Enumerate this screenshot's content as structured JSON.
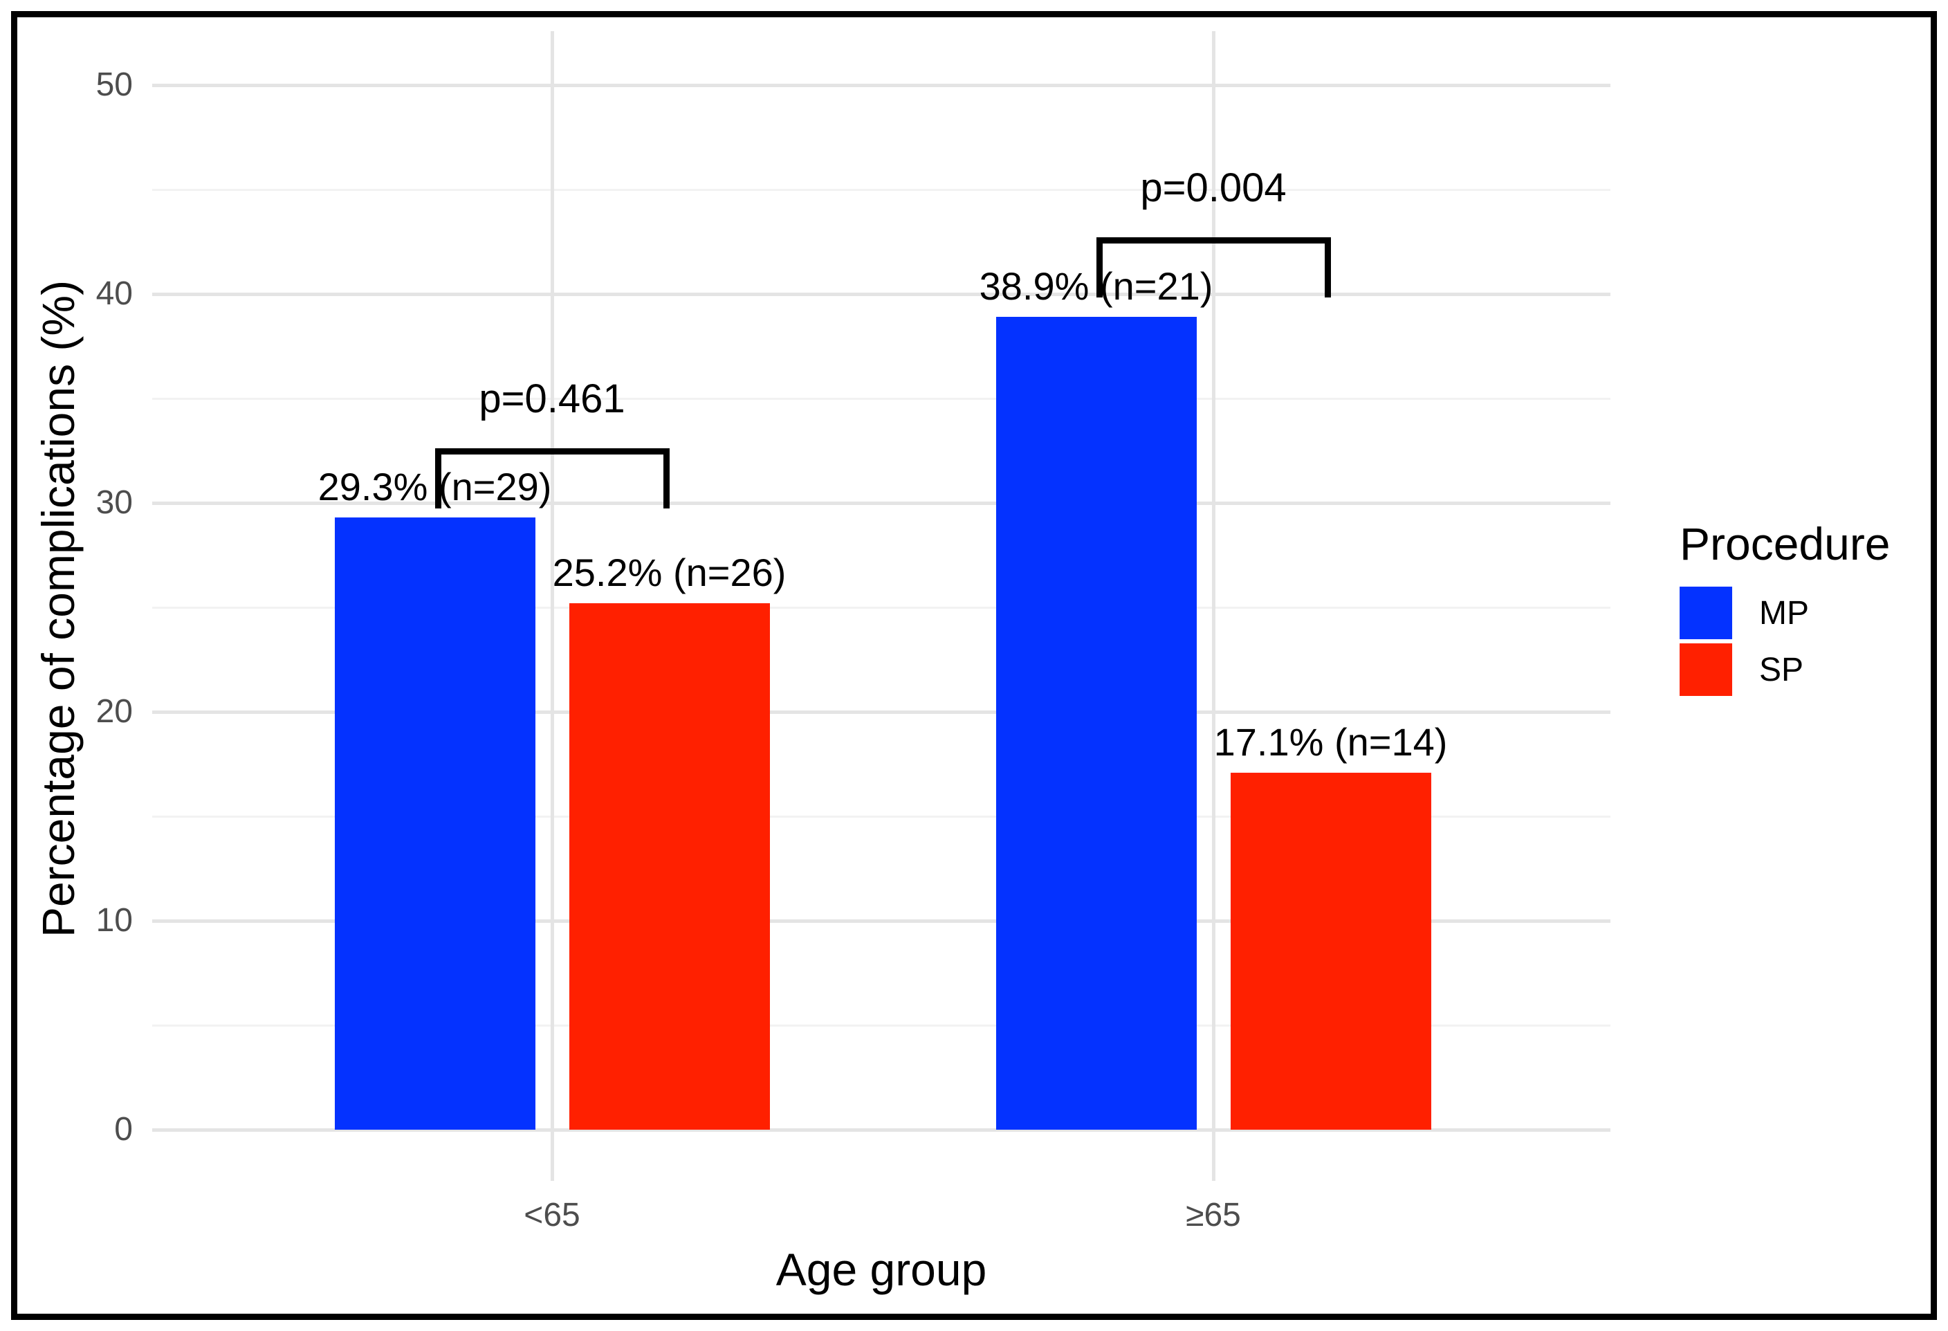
{
  "figure": {
    "background_color": "#FFFFFF",
    "border_color": "#000000"
  },
  "colors": {
    "mp_blue": "#0432FF",
    "sp_red": "#FF2000",
    "grid_major": "#E4E4E4",
    "grid_minor": "#F2F2F2",
    "axis_text": "#4D4D4D",
    "annotation_text": "#000000"
  },
  "chart_data": {
    "type": "bar",
    "title": "",
    "xlabel": "Age group",
    "ylabel": "Percentage of complications (%)",
    "categories": [
      "<65",
      "≥65"
    ],
    "series": [
      {
        "name": "MP",
        "color": "#0432FF",
        "values": [
          29.3,
          38.9
        ],
        "counts": [
          29,
          21
        ],
        "bar_labels": [
          "29.3% (n=29)",
          "38.9% (n=21)"
        ]
      },
      {
        "name": "SP",
        "color": "#FF2000",
        "values": [
          25.2,
          17.1
        ],
        "counts": [
          26,
          14
        ],
        "bar_labels": [
          "25.2% (n=26)",
          "17.1% (n=14)"
        ]
      }
    ],
    "ylim": [
      0,
      50
    ],
    "yticks": [
      0,
      10,
      20,
      30,
      40,
      50
    ],
    "yticks_minor": [
      5,
      15,
      25,
      35,
      45
    ],
    "grid": true,
    "legend": {
      "title": "Procedure",
      "position": "right",
      "items": [
        {
          "label": "MP",
          "color": "#0432FF"
        },
        {
          "label": "SP",
          "color": "#FF2000"
        }
      ]
    },
    "significance_brackets": [
      {
        "category": "<65",
        "label": "p=0.461",
        "y": 32.6
      },
      {
        "category": "≥65",
        "label": "p=0.004",
        "y": 42.7
      }
    ]
  }
}
